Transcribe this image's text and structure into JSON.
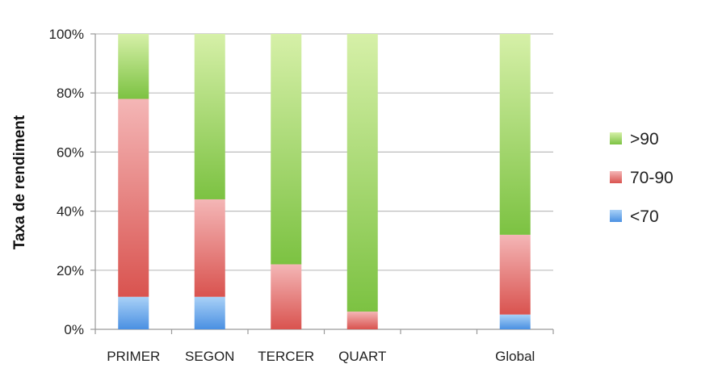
{
  "chart_data": {
    "type": "bar",
    "stacked": true,
    "normalized": true,
    "title": "",
    "xlabel": "",
    "ylabel": "Taxa de rendiment",
    "ylim": [
      0,
      100
    ],
    "y_ticks": [
      "0%",
      "20%",
      "40%",
      "60%",
      "80%",
      "100%"
    ],
    "y_tick_values": [
      0,
      20,
      40,
      60,
      80,
      100
    ],
    "grid": true,
    "legend_position": "right",
    "categories": [
      "PRIMER",
      "SEGON",
      "TERCER",
      "QUART",
      "",
      "Global"
    ],
    "series": [
      {
        "name": "<70",
        "color": "#5b9bd5",
        "values": [
          11,
          11,
          0,
          0,
          null,
          5
        ]
      },
      {
        "name": "70-90",
        "color": "#e06666",
        "values": [
          67,
          33,
          22,
          6,
          null,
          27
        ]
      },
      {
        "name": ">90",
        "color": "#93c47d",
        "values": [
          22,
          56,
          78,
          94,
          null,
          68
        ]
      }
    ],
    "legend_order": [
      ">90",
      "70-90",
      "<70"
    ]
  }
}
